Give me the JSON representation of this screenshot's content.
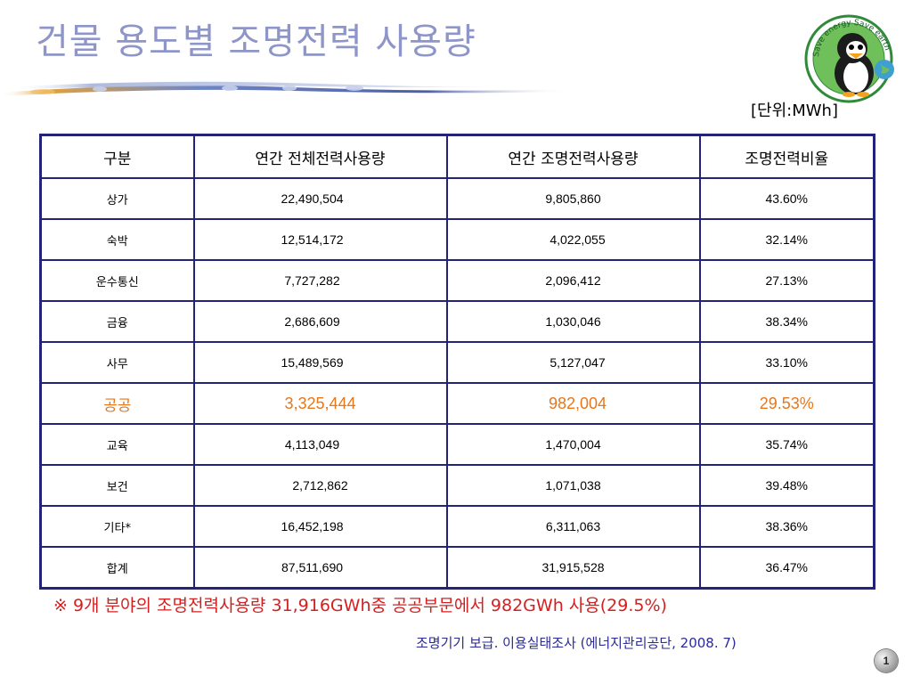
{
  "title": "건물 용도별 조명전력 사용량",
  "unit": "[단위:MWh]",
  "logo": {
    "ring_text": "Save energy Save earth"
  },
  "table": {
    "headers": [
      "구분",
      "연간 전체전력사용량",
      "연간 조명전력사용량",
      "조명전력비율"
    ],
    "rows": [
      {
        "category": "상가",
        "total": "22,490,504",
        "lighting": "9,805,860",
        "ratio": "43.60%",
        "highlight": false
      },
      {
        "category": "숙박",
        "total": "12,514,172",
        "lighting": "4,022,055",
        "ratio": "32.14%",
        "highlight": false
      },
      {
        "category": "운수통신",
        "total": "7,727,282",
        "lighting": "2,096,412",
        "ratio": "27.13%",
        "highlight": false
      },
      {
        "category": "금융",
        "total": "2,686,609",
        "lighting": "1,030,046",
        "ratio": "38.34%",
        "highlight": false
      },
      {
        "category": "사무",
        "total": "15,489,569",
        "lighting": "5,127,047",
        "ratio": "33.10%",
        "highlight": false
      },
      {
        "category": "공공",
        "total": "3,325,444",
        "lighting": "982,004",
        "ratio": "29.53%",
        "highlight": true
      },
      {
        "category": "교육",
        "total": "4,113,049",
        "lighting": "1,470,004",
        "ratio": "35.74%",
        "highlight": false
      },
      {
        "category": "보건",
        "total": "2,712,862",
        "lighting": "1,071,038",
        "ratio": "39.48%",
        "highlight": false
      },
      {
        "category": "기타*",
        "total": "16,452,198",
        "lighting": "6,311,063",
        "ratio": "38.36%",
        "highlight": false
      },
      {
        "category": "합계",
        "total": "87,511,690",
        "lighting": "31,915,528",
        "ratio": "36.47%",
        "highlight": false
      }
    ]
  },
  "note": "※ 9개 분야의 조명전력사용량 31,916GWh중 공공부문에서 982GWh 사용(29.5%)",
  "source": "조명기기 보급. 이용실태조사 (에너지관리공단, 2008. 7)",
  "page_number": "1",
  "colors": {
    "title": "#8e95c8",
    "table_border": "#23237a",
    "highlight": "#e8761a",
    "note": "#d42020",
    "source": "#2a2a9a"
  }
}
